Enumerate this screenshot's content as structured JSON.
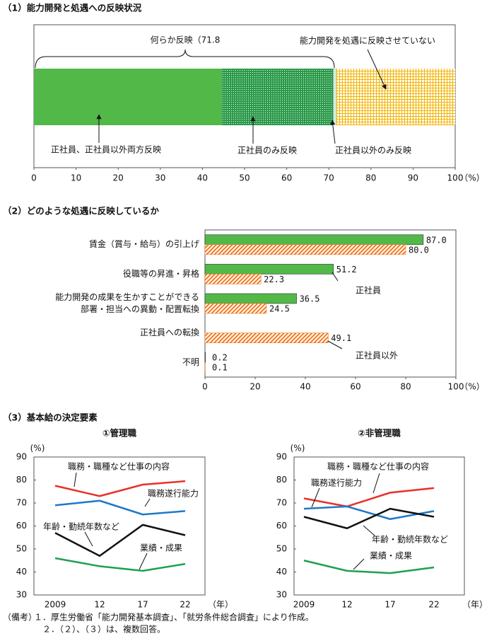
{
  "chart_data": [
    {
      "type": "stacked_bar",
      "orientation": "horizontal",
      "title": "（1）能力開発と処遇への反映状況",
      "annotation": "何らか反映（71.8",
      "xlabel": "（%）",
      "xlim": [
        0,
        100
      ],
      "xticks": [
        0,
        10,
        20,
        30,
        40,
        50,
        60,
        70,
        80,
        90,
        100
      ],
      "series": [
        {
          "name": "正社員、正社員以外両方反映",
          "color": "#52b848",
          "values": [
            44.6
          ]
        },
        {
          "name": "正社員のみ反映",
          "color": "#2a9a4a",
          "pattern": "dots",
          "values": [
            26.5
          ]
        },
        {
          "name": "正社員以外のみ反映",
          "color": "#d6ecd6",
          "values": [
            0.7
          ]
        },
        {
          "name": "能力開発を処遇に反映させていない",
          "color": "#f2b300",
          "pattern": "grid",
          "values": [
            28.2
          ]
        }
      ]
    },
    {
      "type": "bar",
      "orientation": "horizontal",
      "title": "（2）どのような処遇に反映しているか",
      "xlabel": "（%）",
      "categories": [
        "賃金（賞与・給与）の引上げ",
        "役職等の昇進・昇格",
        "能力開発の成果を生かすことができる\n部署・担当への異動・配置転換",
        "正社員への転換",
        "不明"
      ],
      "xlim": [
        0,
        100
      ],
      "xticks": [
        0,
        20,
        40,
        60,
        80,
        100
      ],
      "series": [
        {
          "name": "正社員",
          "color": "#52b848",
          "values": [
            87.0,
            51.2,
            36.5,
            null,
            0.2
          ],
          "value_labels": [
            "87.0",
            "51.2",
            "36.5",
            null,
            "0.2"
          ]
        },
        {
          "name": "正社員以外",
          "color": "#f07a22",
          "pattern": "hatch",
          "values": [
            80.0,
            22.3,
            24.5,
            49.1,
            0.1
          ],
          "value_labels": [
            "80.0",
            "22.3",
            "24.5",
            "49.1",
            "0.1"
          ]
        }
      ]
    },
    {
      "type": "line",
      "title": "（3）基本給の決定要素",
      "subtitle": "①管理職",
      "ylabel": "(%)",
      "xlabel": "（年）",
      "x": [
        "2009",
        "12",
        "17",
        "22"
      ],
      "ylim": [
        30,
        90
      ],
      "yticks": [
        30,
        40,
        50,
        60,
        70,
        80,
        90
      ],
      "series": [
        {
          "name": "職務・職種など仕事の内容",
          "color": "#e8312a",
          "values": [
            77.5,
            73,
            78,
            79.5
          ]
        },
        {
          "name": "職務遂行能力",
          "color": "#1f78c8",
          "values": [
            69,
            71,
            65,
            66.5
          ]
        },
        {
          "name": "年齢・勤続年数など",
          "color": "#111111",
          "values": [
            57,
            47,
            60.5,
            56
          ]
        },
        {
          "name": "業績・成果",
          "color": "#1fa050",
          "values": [
            46,
            42.5,
            40.5,
            43.5
          ]
        }
      ]
    },
    {
      "type": "line",
      "subtitle": "②非管理職",
      "ylabel": "(%)",
      "xlabel": "（年）",
      "x": [
        "2009",
        "12",
        "17",
        "22"
      ],
      "ylim": [
        30,
        90
      ],
      "yticks": [
        30,
        40,
        50,
        60,
        70,
        80,
        90
      ],
      "series": [
        {
          "name": "職務・職種など仕事の内容",
          "color": "#e8312a",
          "values": [
            72,
            68.5,
            74.5,
            76.5
          ]
        },
        {
          "name": "職務遂行能力",
          "color": "#1f78c8",
          "values": [
            67.5,
            68.5,
            63,
            66.5
          ]
        },
        {
          "name": "年齢・勤続年数など",
          "color": "#111111",
          "values": [
            64,
            59,
            67.5,
            64
          ]
        },
        {
          "name": "業績・成果",
          "color": "#1fa050",
          "values": [
            45,
            40.5,
            39.5,
            42
          ]
        }
      ]
    }
  ],
  "notes": {
    "label": "（備考）",
    "items": [
      "１．厚生労働省「能力開発基本調査」、「就労条件総合調査」により作成。",
      "２．（２）、（３）は、複数回答。"
    ]
  }
}
